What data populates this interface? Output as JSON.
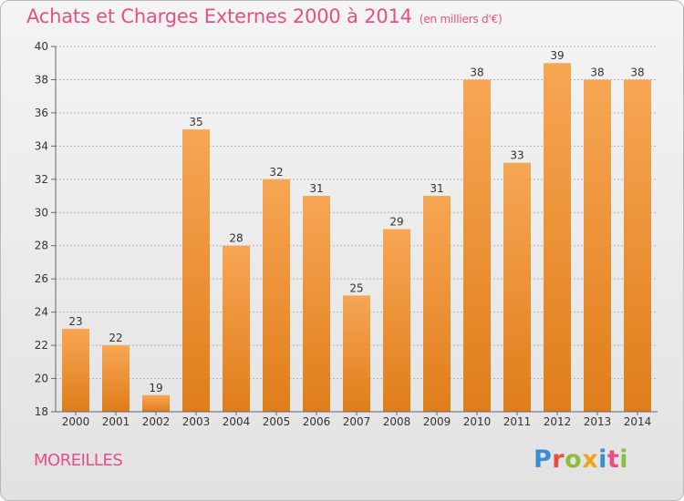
{
  "header": {
    "title": "Achats et Charges Externes 2000 à 2014",
    "unit": "(en milliers d'€)"
  },
  "footer": {
    "commune": "MOREILLES",
    "brand": "Proxiti"
  },
  "colors": {
    "title": "#e94f86",
    "bar_top": "#f7a654",
    "bar_bottom": "#e07d1a",
    "grid": "#b3b3b3",
    "axis_text": "#333333"
  },
  "chart_data": {
    "type": "bar",
    "categories": [
      "2000",
      "2001",
      "2002",
      "2003",
      "2004",
      "2005",
      "2006",
      "2007",
      "2008",
      "2009",
      "2010",
      "2011",
      "2012",
      "2013",
      "2014"
    ],
    "values": [
      23,
      22,
      19,
      35,
      28,
      32,
      31,
      25,
      29,
      31,
      38,
      33,
      39,
      38,
      38
    ],
    "title": "Achats et Charges Externes 2000 à 2014",
    "ylim": [
      18,
      40
    ],
    "yticks": [
      18,
      20,
      22,
      24,
      26,
      28,
      30,
      32,
      34,
      36,
      38,
      40
    ],
    "grid": true,
    "data_labels": true
  }
}
